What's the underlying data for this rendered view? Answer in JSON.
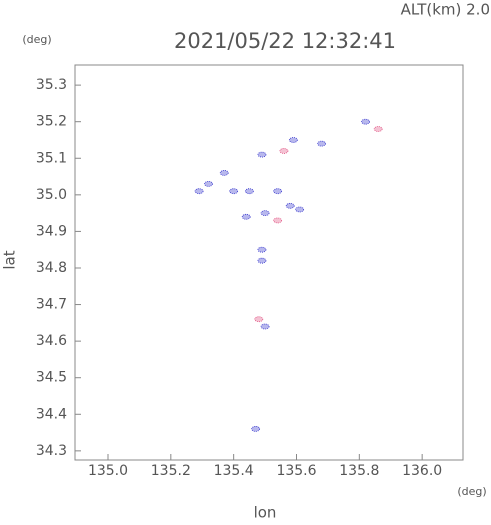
{
  "chart_data": {
    "type": "scatter",
    "title": "2021/05/22 12:32:41",
    "subtitle": "ALT(km) 2.0",
    "y_unit": "(deg)",
    "x_unit": "(deg)",
    "xlabel": "lon",
    "ylabel": "lat",
    "xlim": [
      134.895,
      136.13
    ],
    "ylim": [
      34.275,
      35.355
    ],
    "xticks": [
      {
        "value": 135.0,
        "label": "135.0"
      },
      135.2,
      135.4,
      135.6,
      135.8,
      {
        "value": 136.0,
        "label": "136.0"
      }
    ],
    "yticks": [
      34.3,
      34.4,
      34.5,
      34.6,
      34.7,
      34.8,
      34.9,
      {
        "value": 35.0,
        "label": "35.0"
      },
      35.1,
      35.2,
      35.3
    ],
    "series": [
      {
        "color": "#3333cc",
        "x": [
          135.82,
          135.59,
          135.68,
          135.49,
          135.37,
          135.32,
          135.29,
          135.4,
          135.45,
          135.54,
          135.58,
          135.61,
          135.44,
          135.5,
          135.49,
          135.49,
          135.5,
          135.47
        ],
        "y": [
          35.2,
          35.15,
          35.14,
          35.11,
          35.06,
          35.03,
          35.01,
          35.01,
          35.01,
          35.01,
          34.97,
          34.96,
          34.94,
          34.95,
          34.85,
          34.82,
          34.64,
          34.36
        ]
      },
      {
        "color": "#e05080",
        "x": [
          135.86,
          135.56,
          135.54,
          135.48
        ],
        "y": [
          35.18,
          35.12,
          34.93,
          34.66
        ]
      }
    ]
  }
}
